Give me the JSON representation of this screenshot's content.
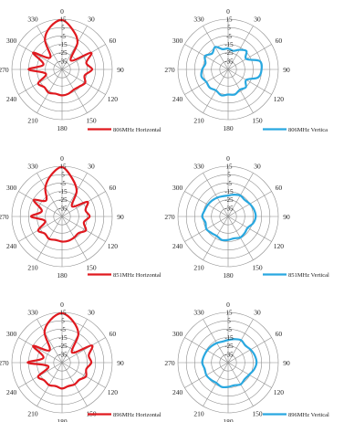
{
  "colors": {
    "horizontal": "#e0191f",
    "vertical": "#29a8e0",
    "grid": "#8c8c8c",
    "text": "#222222"
  },
  "angle_labels": [
    "0",
    "30",
    "60",
    "90",
    "120",
    "150",
    "180",
    "210",
    "240",
    "270",
    "300",
    "330"
  ],
  "radial_labels": [
    "15",
    "5",
    "-5",
    "-15",
    "-25",
    "-35"
  ],
  "chart_data": [
    {
      "type": "polar",
      "legend": "806MHz Horizontal",
      "color": "#e0191f",
      "rlim": [
        -45,
        15
      ],
      "angles_deg": [
        0,
        15,
        30,
        45,
        60,
        75,
        90,
        105,
        120,
        135,
        150,
        165,
        180,
        195,
        210,
        225,
        240,
        255,
        270,
        285,
        300,
        315,
        330,
        345
      ],
      "values_db": [
        14,
        4,
        -8,
        -30,
        -5,
        -15,
        -9,
        -17,
        -13,
        -16,
        -17,
        -15,
        -14,
        -15,
        -13,
        -15,
        -12,
        -25,
        -5,
        -22,
        -5,
        -25,
        -4,
        8
      ]
    },
    {
      "type": "polar",
      "legend": "806MHz Vertica",
      "color": "#29a8e0",
      "rlim": [
        -45,
        15
      ],
      "angles_deg": [
        0,
        15,
        30,
        45,
        60,
        75,
        90,
        105,
        120,
        135,
        150,
        165,
        180,
        195,
        210,
        225,
        240,
        255,
        270,
        285,
        300,
        315,
        330,
        345
      ],
      "values_db": [
        -20,
        -22,
        -18,
        -14,
        -20,
        -6,
        -5,
        -8,
        -20,
        -15,
        -17,
        -14,
        -15,
        -13,
        -16,
        -14,
        -15,
        -12,
        -14,
        -17,
        -13,
        -18,
        -14,
        -20
      ]
    },
    {
      "type": "polar",
      "legend": "851MHz Horizontal",
      "color": "#e0191f",
      "rlim": [
        -45,
        15
      ],
      "angles_deg": [
        0,
        15,
        30,
        45,
        60,
        75,
        90,
        105,
        120,
        135,
        150,
        165,
        180,
        195,
        210,
        225,
        240,
        255,
        270,
        285,
        300,
        315,
        330,
        345
      ],
      "values_db": [
        14,
        2,
        -10,
        -28,
        -10,
        -16,
        -12,
        -18,
        -12,
        -17,
        -16,
        -15,
        -15,
        -16,
        -14,
        -16,
        -12,
        -24,
        -8,
        -20,
        -6,
        -18,
        -5,
        6
      ]
    },
    {
      "type": "polar",
      "legend": "851MHz Vertical",
      "color": "#29a8e0",
      "rlim": [
        -45,
        15
      ],
      "angles_deg": [
        0,
        15,
        30,
        45,
        60,
        75,
        90,
        105,
        120,
        135,
        150,
        165,
        180,
        195,
        210,
        225,
        240,
        255,
        270,
        285,
        300,
        315,
        330,
        345
      ],
      "values_db": [
        -20,
        -18,
        -16,
        -17,
        -15,
        -13,
        -12,
        -14,
        -18,
        -17,
        -16,
        -18,
        -17,
        -16,
        -18,
        -17,
        -15,
        -17,
        -14,
        -16,
        -17,
        -18,
        -19,
        -20
      ]
    },
    {
      "type": "polar",
      "legend": "896MHz Horizontal",
      "color": "#e0191f",
      "rlim": [
        -45,
        15
      ],
      "angles_deg": [
        0,
        15,
        30,
        45,
        60,
        75,
        90,
        105,
        120,
        135,
        150,
        165,
        180,
        195,
        210,
        225,
        240,
        255,
        270,
        285,
        300,
        315,
        330,
        345
      ],
      "values_db": [
        14,
        6,
        -6,
        -28,
        -4,
        -12,
        -10,
        -15,
        -12,
        -16,
        -15,
        -16,
        -14,
        -16,
        -14,
        -15,
        -12,
        -28,
        -4,
        -22,
        -5,
        -24,
        -3,
        8
      ]
    },
    {
      "type": "polar",
      "legend": "896MHz Vertical",
      "color": "#29a8e0",
      "rlim": [
        -45,
        15
      ],
      "angles_deg": [
        0,
        15,
        30,
        45,
        60,
        75,
        90,
        105,
        120,
        135,
        150,
        165,
        180,
        195,
        210,
        225,
        240,
        255,
        270,
        285,
        300,
        315,
        330,
        345
      ],
      "values_db": [
        -18,
        -16,
        -14,
        -16,
        -14,
        -12,
        -11,
        -13,
        -16,
        -17,
        -15,
        -17,
        -16,
        -15,
        -17,
        -16,
        -15,
        -16,
        -14,
        -15,
        -16,
        -17,
        -18,
        -19
      ]
    }
  ]
}
